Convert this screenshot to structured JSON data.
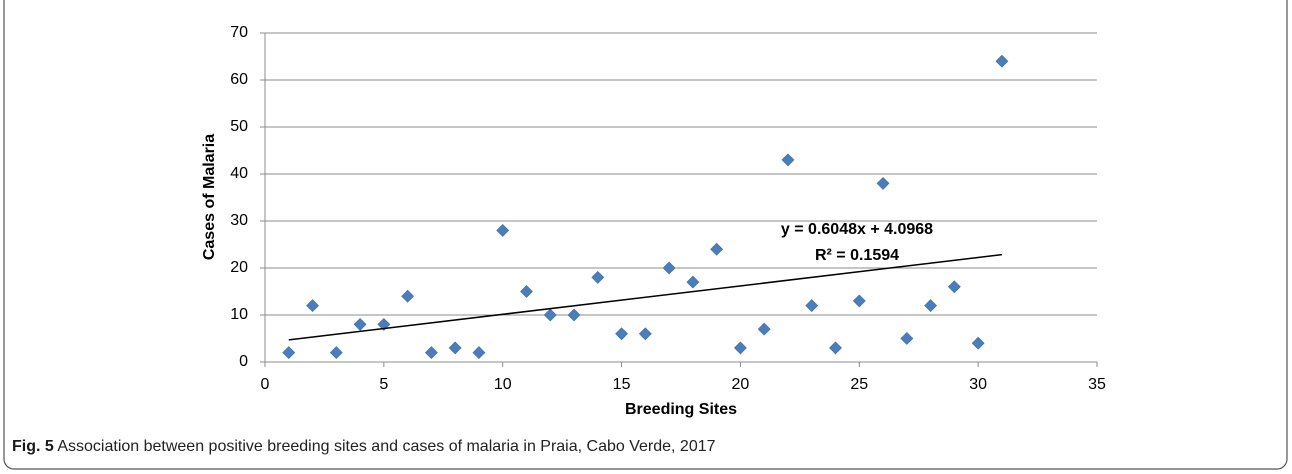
{
  "chart_data": {
    "type": "scatter",
    "x_label": "Breeding Sites",
    "y_label": "Cases of Malaria",
    "x": [
      1,
      2,
      3,
      4,
      5,
      6,
      7,
      8,
      9,
      10,
      11,
      12,
      13,
      14,
      15,
      16,
      17,
      18,
      19,
      20,
      21,
      22,
      23,
      24,
      25,
      26,
      27,
      28,
      29,
      30,
      31
    ],
    "values": [
      2,
      12,
      2,
      8,
      8,
      14,
      2,
      3,
      2,
      28,
      15,
      10,
      10,
      18,
      6,
      6,
      20,
      17,
      24,
      3,
      7,
      43,
      12,
      3,
      13,
      38,
      5,
      12,
      16,
      4,
      64
    ],
    "color": "#4a7ebb",
    "xlim": [
      0,
      35
    ],
    "xticks": [
      0,
      5,
      10,
      15,
      20,
      25,
      30,
      35
    ],
    "ylim": [
      0,
      70
    ],
    "yticks": [
      0,
      10,
      20,
      30,
      40,
      50,
      60,
      70
    ],
    "grid": true,
    "trendline": {
      "x": [
        1,
        31
      ],
      "values": [
        4.7016,
        22.8456
      ],
      "color": "#000000",
      "equation": "y = 0.6048x + 4.0968",
      "r_squared": "R² = 0.1594"
    }
  },
  "caption": {
    "label": "Fig. 5",
    "text": "Association between positive breeding sites and cases of malaria in Praia, Cabo Verde, 2017"
  }
}
